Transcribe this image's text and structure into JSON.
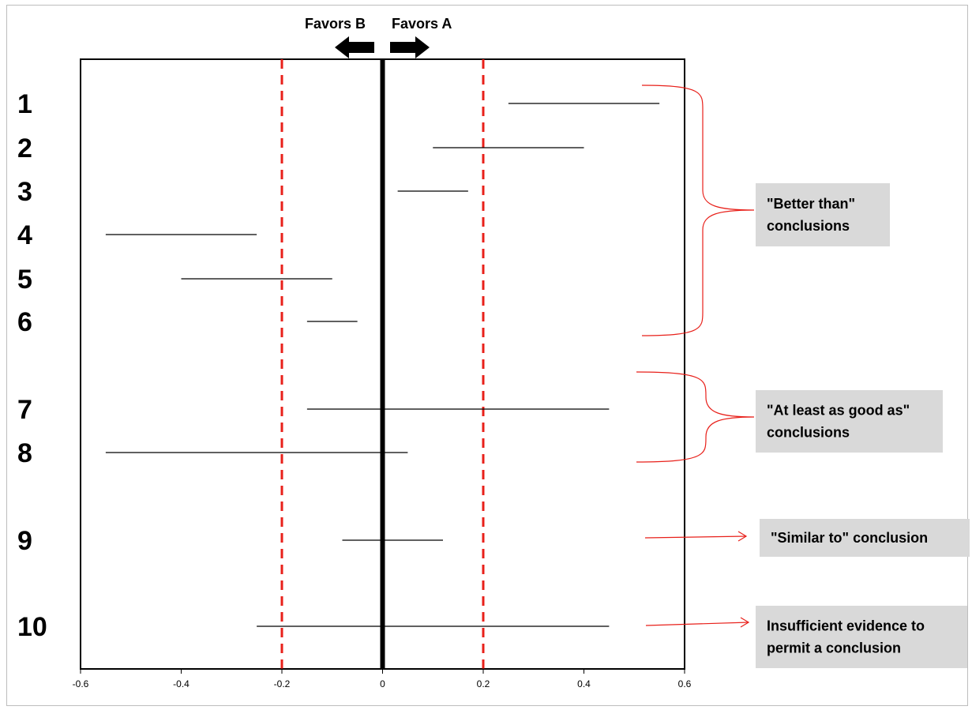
{
  "chart_data": {
    "type": "forest",
    "title": "",
    "xlabel": "",
    "ylabel": "",
    "xlim": [
      -0.6,
      0.6
    ],
    "x_ticks": [
      "-0.6",
      "-0.4",
      "-0.2",
      "0",
      "0.2",
      "0.4",
      "0.6"
    ],
    "x_tick_values": [
      -0.6,
      -0.4,
      -0.2,
      0,
      0.2,
      0.4,
      0.6
    ],
    "reference_line": 0,
    "margin_lines": [
      -0.2,
      0.2
    ],
    "direction_labels": {
      "left": "Favors B",
      "right": "Favors A"
    },
    "intervals": [
      {
        "label": "1",
        "low": 0.25,
        "high": 0.55
      },
      {
        "label": "2",
        "low": 0.1,
        "high": 0.4
      },
      {
        "label": "3",
        "low": 0.03,
        "high": 0.17
      },
      {
        "label": "4",
        "low": -0.55,
        "high": -0.25
      },
      {
        "label": "5",
        "low": -0.4,
        "high": -0.1
      },
      {
        "label": "6",
        "low": -0.15,
        "high": -0.05
      },
      {
        "label": "7",
        "low": -0.15,
        "high": 0.45
      },
      {
        "label": "8",
        "low": -0.55,
        "high": 0.05
      },
      {
        "label": "9",
        "low": -0.08,
        "high": 0.12
      },
      {
        "label": "10",
        "low": -0.25,
        "high": 0.45
      }
    ],
    "annotations": [
      {
        "lines": [
          "\"Better than\"",
          "conclusions"
        ],
        "rows": [
          "1",
          "2",
          "3",
          "4",
          "5",
          "6"
        ],
        "marker": "brace"
      },
      {
        "lines": [
          "\"At least as good as\"",
          "conclusions"
        ],
        "rows": [
          "7",
          "8"
        ],
        "marker": "brace"
      },
      {
        "lines": [
          "\"Similar to\" conclusion"
        ],
        "rows": [
          "9"
        ],
        "marker": "arrow"
      },
      {
        "lines": [
          "Insufficient evidence to",
          "permit a conclusion"
        ],
        "rows": [
          "10"
        ],
        "marker": "arrow"
      }
    ],
    "colors": {
      "interval_line": "#000000",
      "reference_line": "#000000",
      "margin_line": "#e8201a",
      "annotation_marker": "#e8201a",
      "annotation_box": "#d9d9d9"
    }
  }
}
